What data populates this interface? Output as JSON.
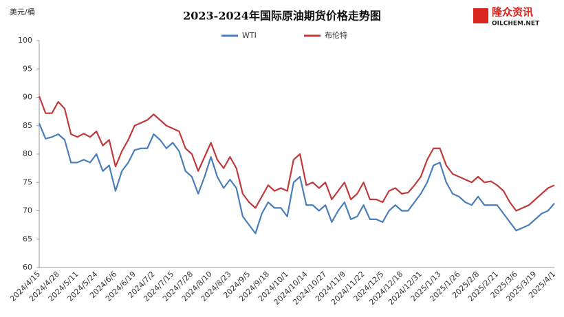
{
  "chart_data": {
    "type": "line",
    "title": "2023-2024年国际原油期货价格走势图",
    "y_label": "美元/桶",
    "categories": [
      "2024/4/15",
      null,
      null,
      "2024/4/28",
      null,
      null,
      "2024/5/11",
      null,
      null,
      "2024/5/24",
      null,
      null,
      "2024/6/6",
      null,
      null,
      "2024/6/19",
      null,
      null,
      "2024/7/2",
      null,
      null,
      "2024/7/15",
      null,
      null,
      "2024/7/28",
      null,
      null,
      "2024/8/10",
      null,
      null,
      "2024/8/23",
      null,
      null,
      "2024/9/5",
      null,
      null,
      "2024/9/18",
      null,
      null,
      "2024/10/1",
      null,
      null,
      "2024/10/14",
      null,
      null,
      "2024/10/27",
      null,
      null,
      "2024/11/9",
      null,
      null,
      "2024/11/22",
      null,
      null,
      "2024/12/5",
      null,
      null,
      "2024/12/18",
      null,
      null,
      "2024/12/31",
      null,
      null,
      "2025/1/13",
      null,
      null,
      "2025/1/26",
      null,
      null,
      "2025/2/8",
      null,
      null,
      "2025/2/21",
      null,
      null,
      "2025/3/6",
      null,
      null,
      "2025/3/19",
      null,
      null,
      "2025/4/1"
    ],
    "series": [
      {
        "name": "WTI",
        "color": "#4a7ebb",
        "values": [
          85.4,
          82.7,
          83,
          83.5,
          82.5,
          78.5,
          78.5,
          79,
          78.5,
          80,
          77,
          78,
          73.5,
          77,
          78.5,
          80.7,
          81,
          81,
          83.5,
          82.5,
          81,
          82,
          80.5,
          77,
          76,
          73,
          76,
          79.5,
          76,
          74,
          75.5,
          74,
          69,
          67.5,
          66,
          69.5,
          71.5,
          70.5,
          70.5,
          69,
          75,
          76,
          71,
          71,
          70,
          71,
          68,
          70,
          71.5,
          68.5,
          69,
          71,
          68.5,
          68.5,
          68,
          70,
          71,
          70,
          70,
          71.5,
          73,
          75,
          78,
          78.5,
          75,
          73,
          72.5,
          71.5,
          71,
          72.5,
          71,
          71,
          71,
          69.5,
          68,
          66.5,
          67,
          67.5,
          68.5,
          69.5,
          70,
          71.3
        ]
      },
      {
        "name": "布伦特",
        "color": "#c0393b",
        "values": [
          90.2,
          87.2,
          87.2,
          89.2,
          88,
          83.5,
          83,
          83.6,
          83,
          84,
          81.5,
          82.5,
          77.8,
          80.5,
          82.5,
          85,
          85.5,
          86,
          87,
          86,
          85,
          84.5,
          84,
          81,
          80,
          77,
          79.5,
          82,
          79,
          77.5,
          79.5,
          77.5,
          73,
          71.5,
          70.5,
          72.5,
          74.5,
          73.5,
          74,
          73.5,
          79,
          80,
          74.5,
          75,
          74,
          75,
          72,
          73.5,
          75,
          72,
          73,
          75,
          72,
          72,
          71.5,
          73.5,
          74,
          73,
          73.2,
          74.5,
          76,
          79,
          81,
          81,
          78,
          76.5,
          76,
          75.5,
          75,
          76,
          75,
          75.2,
          74.5,
          73.5,
          71.5,
          70,
          70.5,
          71,
          72,
          73,
          74,
          74.5
        ]
      }
    ],
    "ylim": [
      60,
      100
    ],
    "yticks": [
      60,
      65,
      70,
      75,
      80,
      85,
      90,
      95,
      100
    ],
    "grid": false,
    "legend": "top"
  },
  "logo": {
    "name": "隆众资讯",
    "site": "OILCHEM.NET"
  }
}
